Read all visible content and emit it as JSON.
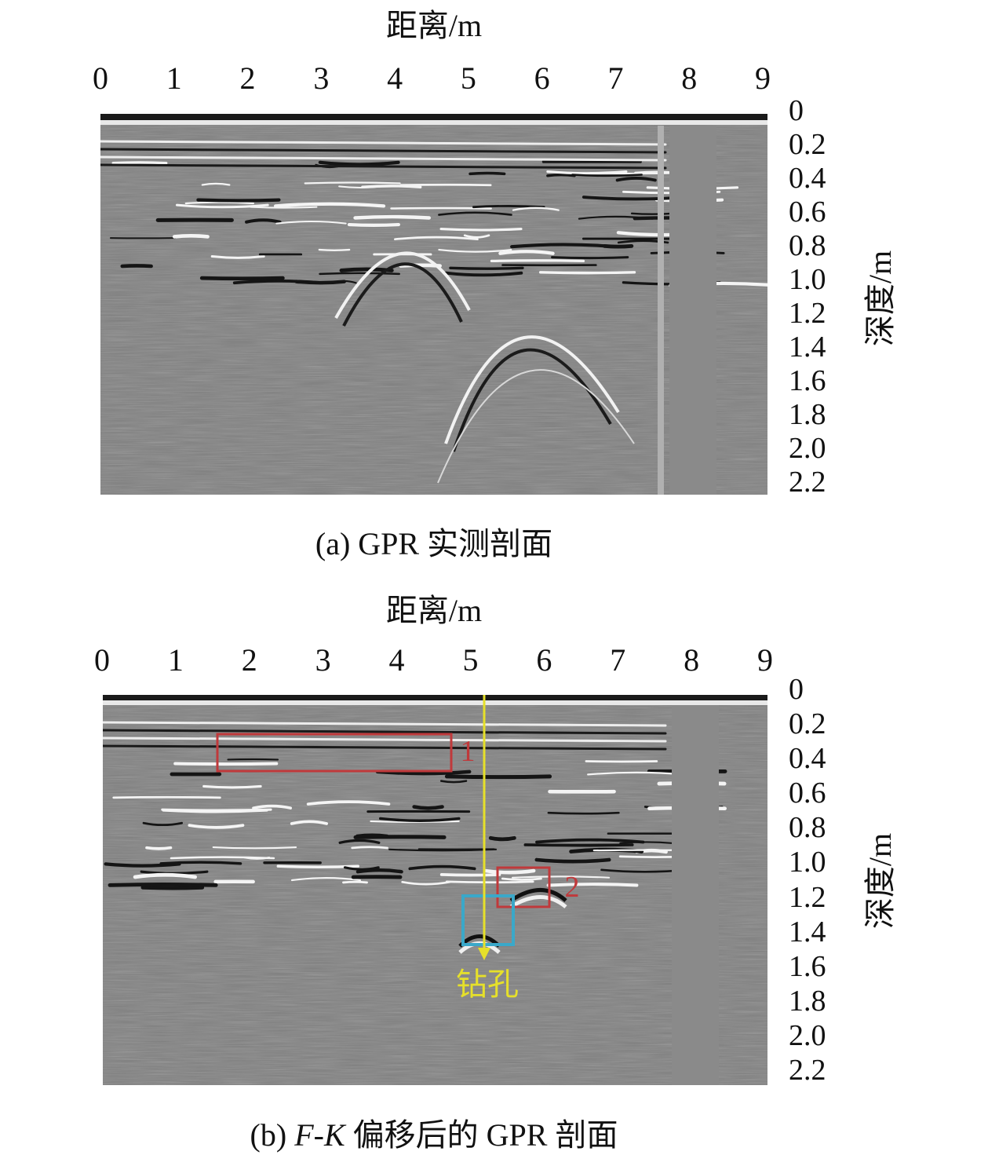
{
  "panel_a": {
    "xlabel": "距离/m",
    "ylabel": "深度/m",
    "caption": "(a) GPR 实测剖面",
    "x_ticks": [
      "0",
      "1",
      "2",
      "3",
      "4",
      "5",
      "6",
      "7",
      "8",
      "9"
    ],
    "y_ticks": [
      "0",
      "0.2",
      "0.4",
      "0.6",
      "0.8",
      "1.0",
      "1.2",
      "1.4",
      "1.6",
      "1.8",
      "2.0",
      "2.2"
    ]
  },
  "panel_b": {
    "xlabel": "距离/m",
    "ylabel": "深度/m",
    "caption_prefix": "(b) ",
    "caption_italic": "F-K",
    "caption_suffix": " 偏移后的 GPR 剖面",
    "x_ticks": [
      "0",
      "1",
      "2",
      "3",
      "4",
      "5",
      "6",
      "7",
      "8",
      "9"
    ],
    "y_ticks": [
      "0",
      "0.2",
      "0.4",
      "0.6",
      "0.8",
      "1.0",
      "1.2",
      "1.4",
      "1.6",
      "1.8",
      "2.0",
      "2.2"
    ],
    "annotation_1": "1",
    "annotation_2": "2",
    "borehole_label": "钻孔",
    "colors": {
      "box_red": "#c0393b",
      "box_cyan": "#3aa8c9",
      "borehole": "#e6e02a"
    }
  },
  "chart_data": [
    {
      "type": "heatmap",
      "title": "(a) GPR 实测剖面",
      "xlabel": "距离/m",
      "ylabel": "深度/m",
      "xlim": [
        0,
        9
      ],
      "ylim": [
        0,
        2.2
      ]
    },
    {
      "type": "heatmap",
      "title": "(b) F-K 偏移后的 GPR 剖面",
      "xlabel": "距离/m",
      "ylabel": "深度/m",
      "xlim": [
        0,
        9
      ],
      "ylim": [
        0,
        2.2
      ],
      "annotations": [
        {
          "label": "1",
          "x_range": [
            1.6,
            4.8
          ],
          "y_range": [
            0.3,
            0.5
          ]
        },
        {
          "label": "2",
          "x_range": [
            5.4,
            6.1
          ],
          "y_range": [
            1.0,
            1.25
          ]
        },
        {
          "label": "钻孔",
          "x": 5.2,
          "y": 1.6
        }
      ]
    }
  ]
}
